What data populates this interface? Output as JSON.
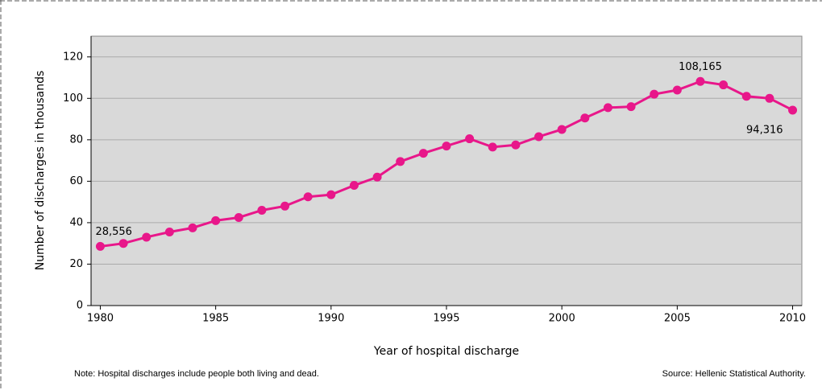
{
  "chart_data": {
    "type": "line",
    "x_label": "Year of hospital discharge",
    "y_label": "Number of discharges in thousands",
    "x": [
      1980,
      1981,
      1982,
      1983,
      1984,
      1985,
      1986,
      1987,
      1988,
      1989,
      1990,
      1991,
      1992,
      1993,
      1994,
      1995,
      1996,
      1997,
      1998,
      1999,
      2000,
      2001,
      2002,
      2003,
      2004,
      2005,
      2006,
      2007,
      2008,
      2009,
      2010
    ],
    "series": [
      {
        "name": null,
        "color": "#e8178a",
        "values": [
          28.556,
          30,
          33,
          35.5,
          37.5,
          41,
          42.5,
          46,
          48,
          52.5,
          53.5,
          58,
          62,
          69.5,
          73.5,
          77,
          80.5,
          76.5,
          77.5,
          81.5,
          85,
          90.5,
          95.5,
          96,
          102,
          104,
          108.165,
          106.5,
          101,
          100,
          94.316
        ],
        "value_labels": [
          "28,556",
          null,
          null,
          null,
          null,
          null,
          null,
          null,
          null,
          null,
          null,
          null,
          null,
          null,
          null,
          null,
          null,
          null,
          null,
          null,
          null,
          null,
          null,
          null,
          null,
          null,
          "108,165",
          null,
          null,
          null,
          "94,316"
        ]
      }
    ],
    "xlim": [
      1979.6,
      2010.4
    ],
    "xticks": [
      1980,
      1985,
      1990,
      1995,
      2000,
      2005,
      2010
    ],
    "ylim": [
      0,
      130
    ],
    "yticks": [
      0,
      20,
      40,
      60,
      80,
      100,
      120
    ],
    "grid": true,
    "annotations": [
      "Note: Hospital discharges include people both living and dead.",
      "Source: Hellenic Statistical Authority."
    ]
  }
}
